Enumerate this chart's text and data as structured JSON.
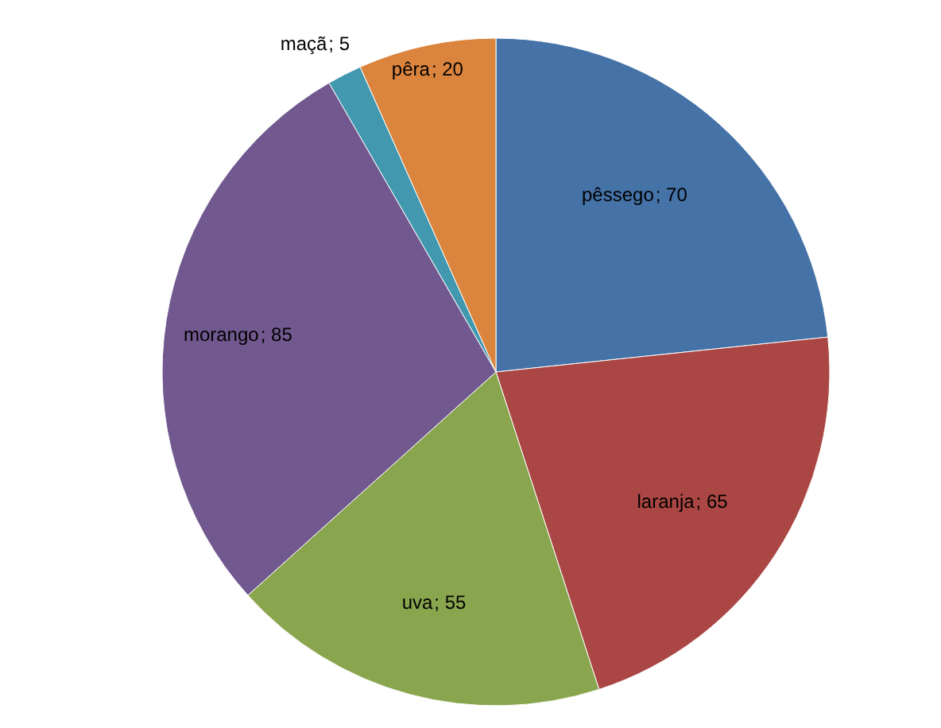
{
  "chart_data": {
    "type": "pie",
    "categories": [
      "pêssego",
      "laranja",
      "uva",
      "morango",
      "maçã",
      "pêra"
    ],
    "values": [
      70,
      65,
      55,
      85,
      5,
      20
    ],
    "colors": [
      "#4572a7",
      "#aa4643",
      "#89a54e",
      "#71588f",
      "#4198af",
      "#db843d"
    ],
    "value_labels": [
      "; 70",
      "; 65",
      "; 55",
      "; 85",
      "; 5",
      "; 20"
    ]
  }
}
